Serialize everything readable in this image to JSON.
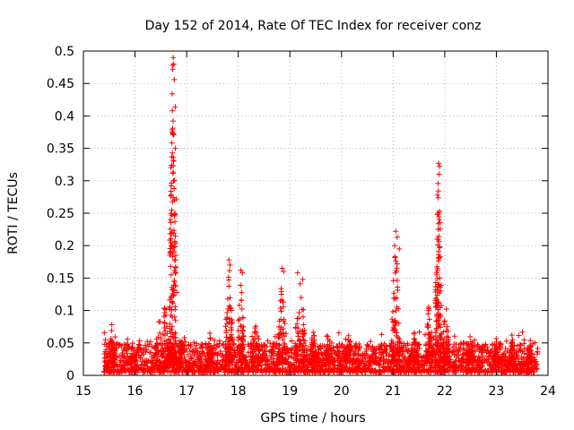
{
  "chart_data": {
    "type": "scatter",
    "title": "Day 152 of 2014, Rate Of TEC Index for receiver conz",
    "xlabel": "GPS time / hours",
    "ylabel": "ROTI / TECUs",
    "xlim": [
      15,
      24
    ],
    "ylim": [
      0,
      0.5
    ],
    "xticks": [
      "15",
      "16",
      "17",
      "18",
      "19",
      "20",
      "21",
      "22",
      "23",
      "24"
    ],
    "yticks": [
      "0",
      "0.05",
      "0.1",
      "0.15",
      "0.2",
      "0.25",
      "0.3",
      "0.35",
      "0.4",
      "0.45",
      "0.5"
    ],
    "grid": true,
    "marker": "+",
    "series_color": "#ff0000",
    "baseline": {
      "x_start": 15.4,
      "x_end": 23.8,
      "typical_min": 0.005,
      "typical_max": 0.05,
      "note": "dense band of samples approx 0.005-0.05 TECU across the whole interval"
    },
    "bursts": [
      {
        "x": 15.55,
        "width": 0.08,
        "peak": 0.078
      },
      {
        "x": 15.95,
        "width": 0.06,
        "peak": 0.055
      },
      {
        "x": 16.55,
        "width": 0.15,
        "peak": 0.13
      },
      {
        "x": 16.73,
        "width": 0.06,
        "peak": 0.49
      },
      {
        "x": 16.9,
        "width": 0.08,
        "peak": 0.06
      },
      {
        "x": 17.45,
        "width": 0.06,
        "peak": 0.065
      },
      {
        "x": 17.82,
        "width": 0.07,
        "peak": 0.178
      },
      {
        "x": 18.05,
        "width": 0.06,
        "peak": 0.162
      },
      {
        "x": 18.35,
        "width": 0.09,
        "peak": 0.09
      },
      {
        "x": 18.85,
        "width": 0.07,
        "peak": 0.165
      },
      {
        "x": 19.2,
        "width": 0.1,
        "peak": 0.16
      },
      {
        "x": 19.45,
        "width": 0.06,
        "peak": 0.08
      },
      {
        "x": 19.75,
        "width": 0.08,
        "peak": 0.07
      },
      {
        "x": 20.15,
        "width": 0.1,
        "peak": 0.068
      },
      {
        "x": 20.6,
        "width": 0.08,
        "peak": 0.05
      },
      {
        "x": 21.05,
        "width": 0.08,
        "peak": 0.222
      },
      {
        "x": 21.4,
        "width": 0.07,
        "peak": 0.08
      },
      {
        "x": 21.7,
        "width": 0.06,
        "peak": 0.128
      },
      {
        "x": 21.88,
        "width": 0.06,
        "peak": 0.328
      },
      {
        "x": 22.02,
        "width": 0.07,
        "peak": 0.12
      },
      {
        "x": 22.5,
        "width": 0.08,
        "peak": 0.065
      },
      {
        "x": 23.0,
        "width": 0.06,
        "peak": 0.058
      },
      {
        "x": 23.3,
        "width": 0.05,
        "peak": 0.062
      },
      {
        "x": 23.65,
        "width": 0.05,
        "peak": 0.06
      }
    ],
    "notable_points": [
      {
        "x": 16.74,
        "y": 0.49
      },
      {
        "x": 16.75,
        "y": 0.48
      },
      {
        "x": 16.73,
        "y": 0.472
      },
      {
        "x": 16.76,
        "y": 0.456
      },
      {
        "x": 16.72,
        "y": 0.434
      },
      {
        "x": 16.78,
        "y": 0.414
      },
      {
        "x": 16.73,
        "y": 0.381
      },
      {
        "x": 16.78,
        "y": 0.35
      },
      {
        "x": 16.71,
        "y": 0.337
      },
      {
        "x": 16.74,
        "y": 0.274
      },
      {
        "x": 16.8,
        "y": 0.272
      },
      {
        "x": 16.72,
        "y": 0.22
      },
      {
        "x": 16.79,
        "y": 0.204
      },
      {
        "x": 16.69,
        "y": 0.168
      },
      {
        "x": 16.81,
        "y": 0.128
      },
      {
        "x": 21.88,
        "y": 0.327
      },
      {
        "x": 21.9,
        "y": 0.322
      },
      {
        "x": 21.89,
        "y": 0.31
      },
      {
        "x": 21.87,
        "y": 0.296
      },
      {
        "x": 21.86,
        "y": 0.278
      },
      {
        "x": 21.9,
        "y": 0.253
      },
      {
        "x": 21.85,
        "y": 0.21
      },
      {
        "x": 21.88,
        "y": 0.186
      },
      {
        "x": 21.92,
        "y": 0.13
      },
      {
        "x": 21.05,
        "y": 0.222
      },
      {
        "x": 21.08,
        "y": 0.213
      },
      {
        "x": 21.03,
        "y": 0.2
      },
      {
        "x": 21.12,
        "y": 0.195
      },
      {
        "x": 17.82,
        "y": 0.178
      },
      {
        "x": 17.84,
        "y": 0.17
      },
      {
        "x": 18.05,
        "y": 0.162
      },
      {
        "x": 18.08,
        "y": 0.158
      },
      {
        "x": 18.85,
        "y": 0.165
      },
      {
        "x": 18.88,
        "y": 0.16
      },
      {
        "x": 19.15,
        "y": 0.158
      },
      {
        "x": 19.25,
        "y": 0.148
      },
      {
        "x": 15.55,
        "y": 0.078
      },
      {
        "x": 23.3,
        "y": 0.062
      },
      {
        "x": 17.45,
        "y": 0.065
      }
    ]
  }
}
